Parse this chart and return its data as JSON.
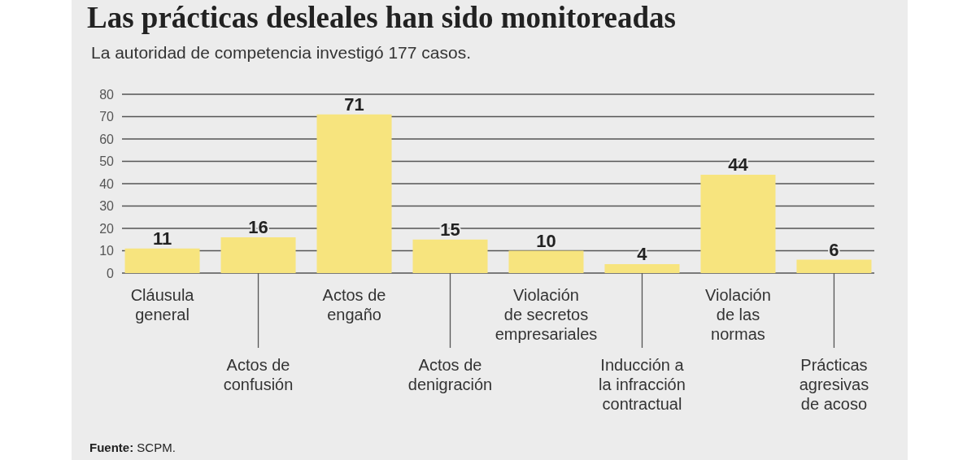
{
  "chart_data": {
    "type": "bar",
    "title": "Las prácticas desleales han sido monitoreadas",
    "subtitle": "La autoridad de competencia investigó 177 casos.",
    "categories": [
      "Cláusula\ngeneral",
      "Actos de\nconfusión",
      "Actos de\nengaño",
      "Actos de\ndenigración",
      "Violación\nde secretos\nempresariales",
      "Inducción a\nla infracción\ncontractual",
      "Violación\nde las\nnormas",
      "Prácticas\nagresivas\nde acoso"
    ],
    "values": [
      11,
      16,
      71,
      15,
      10,
      4,
      44,
      6
    ],
    "color": "#f7e47e",
    "ylim": [
      0,
      80
    ],
    "yticks": [
      0,
      10,
      20,
      30,
      40,
      50,
      60,
      70,
      80
    ],
    "grid": "y",
    "data_labels": true,
    "annotations": [
      "Fuente: SCPM."
    ]
  }
}
